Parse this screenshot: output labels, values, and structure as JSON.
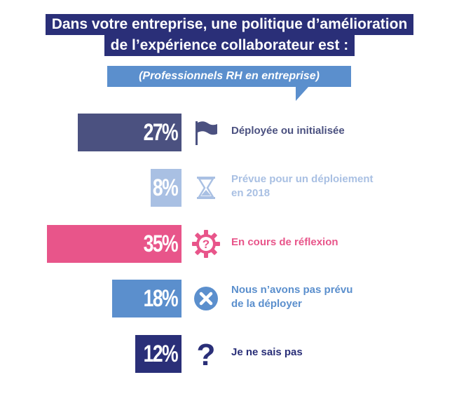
{
  "chart_data": {
    "type": "bar",
    "orientation": "horizontal",
    "title_lines": [
      "Dans votre entreprise, une politique d’amélioration",
      "de l’expérience collaborateur est :"
    ],
    "subtitle": "(Professionnels RH en entreprise)",
    "categories": [
      "Déployée ou initialisée",
      "Prévue pour un déploiement en 2018",
      "En cours de réflexion",
      "Nous n’avons pas prévu de la déployer",
      "Je ne sais pas"
    ],
    "values": [
      27,
      8,
      35,
      18,
      12
    ],
    "value_labels": [
      "27%",
      "8%",
      "35%",
      "18%",
      "12%"
    ],
    "label_lines": [
      [
        "Déployée ou initialisée"
      ],
      [
        "Prévue pour un déploiement",
        "en 2018"
      ],
      [
        "En cours de réflexion"
      ],
      [
        "Nous n’avons pas prévu",
        "de la déployer"
      ],
      [
        "Je ne sais pas"
      ]
    ],
    "icons": [
      "flag-icon",
      "hourglass-icon",
      "gear-question-icon",
      "circle-x-icon",
      "question-mark-icon"
    ],
    "colors": [
      "#4b5180",
      "#a9c0e3",
      "#e8558a",
      "#5b8fcd",
      "#2a2f78"
    ],
    "xlim": [
      0,
      35
    ],
    "xlabel": "",
    "ylabel": ""
  }
}
